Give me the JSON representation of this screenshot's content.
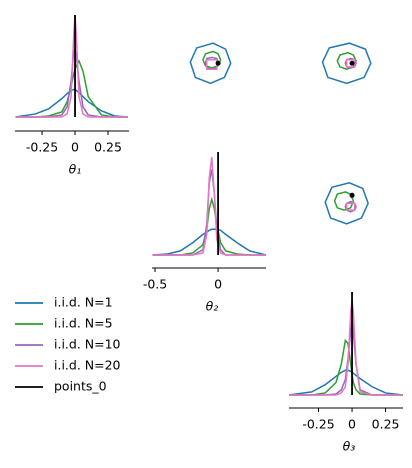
{
  "chart_data": {
    "type": "pairplot",
    "series": [
      {
        "name": "i.i.d. N=1",
        "color": "#1f77b4"
      },
      {
        "name": "i.i.d. N=5",
        "color": "#2ca02c"
      },
      {
        "name": "i.i.d. N=10",
        "color": "#9467bd"
      },
      {
        "name": "i.i.d. N=20",
        "color": "#e377c2"
      }
    ],
    "reference": {
      "name": "points_0",
      "color": "#000000",
      "values": [
        0,
        0,
        0
      ]
    },
    "diagonal": [
      {
        "xlabel": "θ₁",
        "xlim": [
          -0.455,
          0.409
        ],
        "xticks": [
          -0.25,
          0,
          0.25
        ],
        "ylim": [
          0,
          1
        ],
        "x": [
          -0.45,
          -0.3,
          -0.2,
          -0.1,
          -0.06,
          -0.03,
          -0.01,
          0,
          0.01,
          0.03,
          0.06,
          0.1,
          0.2,
          0.3,
          0.4
        ],
        "densities": [
          [
            0,
            0.03,
            0.08,
            0.18,
            0.23,
            0.26,
            0.27,
            0.27,
            0.26,
            0.24,
            0.2,
            0.15,
            0.06,
            0.01,
            0
          ],
          [
            0,
            0,
            0.01,
            0.05,
            0.15,
            0.3,
            0.42,
            0.47,
            0.5,
            0.55,
            0.45,
            0.2,
            0.02,
            0,
            0
          ],
          [
            0,
            0,
            0,
            0.02,
            0.1,
            0.35,
            0.64,
            0.66,
            0.6,
            0.35,
            0.1,
            0.02,
            0,
            0,
            0
          ],
          [
            0,
            0,
            0,
            0,
            0.03,
            0.2,
            0.8,
            1.0,
            0.8,
            0.2,
            0.03,
            0,
            0,
            0,
            0
          ]
        ]
      },
      {
        "xlabel": "θ₂",
        "xlim": [
          -0.524,
          0.38
        ],
        "xticks": [
          -0.5,
          0
        ],
        "ylim": [
          0,
          1
        ],
        "x": [
          -0.52,
          -0.4,
          -0.3,
          -0.2,
          -0.12,
          -0.09,
          -0.07,
          -0.05,
          -0.03,
          -0.01,
          0.02,
          0.06,
          0.15,
          0.25,
          0.38
        ],
        "densities": [
          [
            0,
            0.01,
            0.04,
            0.12,
            0.2,
            0.22,
            0.24,
            0.25,
            0.25,
            0.25,
            0.24,
            0.2,
            0.12,
            0.04,
            0
          ],
          [
            0,
            0,
            0,
            0.02,
            0.1,
            0.25,
            0.45,
            0.54,
            0.45,
            0.3,
            0.12,
            0.04,
            0.01,
            0,
            0
          ],
          [
            0,
            0,
            0,
            0,
            0.05,
            0.3,
            0.7,
            0.83,
            0.6,
            0.25,
            0.05,
            0,
            0,
            0,
            0
          ],
          [
            0,
            0,
            0,
            0,
            0.02,
            0.2,
            0.75,
            0.95,
            0.6,
            0.15,
            0.02,
            0,
            0,
            0,
            0
          ]
        ]
      },
      {
        "xlabel": "θ₃",
        "xlim": [
          -0.47,
          0.38
        ],
        "xticks": [
          -0.25,
          0,
          0.25
        ],
        "ylim": [
          0,
          1
        ],
        "x": [
          -0.47,
          -0.3,
          -0.2,
          -0.12,
          -0.08,
          -0.05,
          -0.03,
          -0.01,
          0,
          0.01,
          0.03,
          0.06,
          0.15,
          0.25,
          0.38
        ],
        "densities": [
          [
            0,
            0.03,
            0.1,
            0.18,
            0.22,
            0.24,
            0.24,
            0.23,
            0.22,
            0.21,
            0.19,
            0.16,
            0.08,
            0.02,
            0
          ],
          [
            0,
            0,
            0.02,
            0.12,
            0.3,
            0.53,
            0.5,
            0.3,
            0.2,
            0.12,
            0.05,
            0.01,
            0,
            0,
            0
          ],
          [
            0,
            0,
            0,
            0.01,
            0.05,
            0.15,
            0.35,
            0.62,
            0.73,
            0.6,
            0.3,
            0.05,
            0,
            0,
            0
          ],
          [
            0,
            0,
            0,
            0,
            0.02,
            0.08,
            0.3,
            0.8,
            0.92,
            0.8,
            0.3,
            0.03,
            0,
            0,
            0
          ]
        ]
      }
    ],
    "upper": [
      {
        "contours": [
          {
            "x": [
              0.1,
              0.06,
              -0.04,
              -0.17,
              -0.22,
              -0.18,
              -0.06,
              0.05
            ],
            "y": [
              0,
              0.12,
              0.17,
              0.13,
              0.01,
              -0.12,
              -0.17,
              -0.12
            ]
          },
          {
            "x": [
              0.02,
              0.0,
              -0.04,
              -0.1,
              -0.12,
              -0.1,
              -0.05,
              0.0
            ],
            "y": [
              0.03,
              0.08,
              0.1,
              0.08,
              0.03,
              -0.02,
              -0.04,
              -0.02
            ]
          },
          {
            "x": [
              0,
              -0.01,
              -0.05,
              -0.09,
              -0.1,
              -0.09,
              -0.05,
              -0.01
            ],
            "y": [
              0,
              0.04,
              0.05,
              0.04,
              0,
              -0.04,
              -0.05,
              -0.04
            ]
          },
          {
            "x": [
              -0.01,
              -0.01,
              -0.09,
              -0.09
            ],
            "y": [
              0.03,
              -0.05,
              -0.05,
              0.03
            ]
          }
        ]
      },
      {
        "contours": [
          {
            "x": [
              0.14,
              0.1,
              -0.02,
              -0.17,
              -0.22,
              -0.18,
              -0.04,
              0.09
            ],
            "y": [
              0,
              0.12,
              0.17,
              0.13,
              0.01,
              -0.12,
              -0.17,
              -0.12
            ]
          },
          {
            "x": [
              0.03,
              0.01,
              -0.03,
              -0.09,
              -0.11,
              -0.09,
              -0.04,
              0.01
            ],
            "y": [
              0.02,
              0.07,
              0.09,
              0.07,
              0.02,
              -0.03,
              -0.05,
              -0.03
            ]
          },
          {
            "x": [
              0.03,
              0.02,
              -0.01,
              -0.04,
              -0.05,
              -0.04,
              -0.01,
              0.02
            ],
            "y": [
              0,
              0.03,
              0.04,
              0.03,
              0,
              -0.03,
              -0.04,
              -0.03
            ]
          },
          {
            "x": [
              0.02,
              0.02,
              -0.04,
              -0.04
            ],
            "y": [
              0.03,
              -0.03,
              -0.03,
              0.03
            ]
          }
        ]
      },
      {
        "contours": [
          {
            "x": [
              0.12,
              0.08,
              -0.02,
              -0.15,
              -0.2,
              -0.16,
              -0.04,
              0.07
            ],
            "y": [
              -0.07,
              0.06,
              0.11,
              0.07,
              -0.06,
              -0.2,
              -0.25,
              -0.2
            ]
          },
          {
            "x": [
              0.01,
              -0.01,
              -0.05,
              -0.11,
              -0.13,
              -0.11,
              -0.06,
              -0.01
            ],
            "y": [
              -0.05,
              0.01,
              0.03,
              0.01,
              -0.05,
              -0.11,
              -0.13,
              -0.11
            ]
          },
          {
            "x": [
              0.03,
              0.02,
              -0.01,
              -0.04,
              -0.05,
              -0.04,
              -0.01,
              0.02
            ],
            "y": [
              -0.1,
              -0.07,
              -0.055,
              -0.07,
              -0.1,
              -0.13,
              -0.145,
              -0.13
            ]
          },
          {
            "x": [
              0.02,
              0.02,
              -0.04,
              -0.04
            ],
            "y": [
              -0.07,
              -0.13,
              -0.13,
              -0.07
            ]
          }
        ]
      }
    ]
  }
}
